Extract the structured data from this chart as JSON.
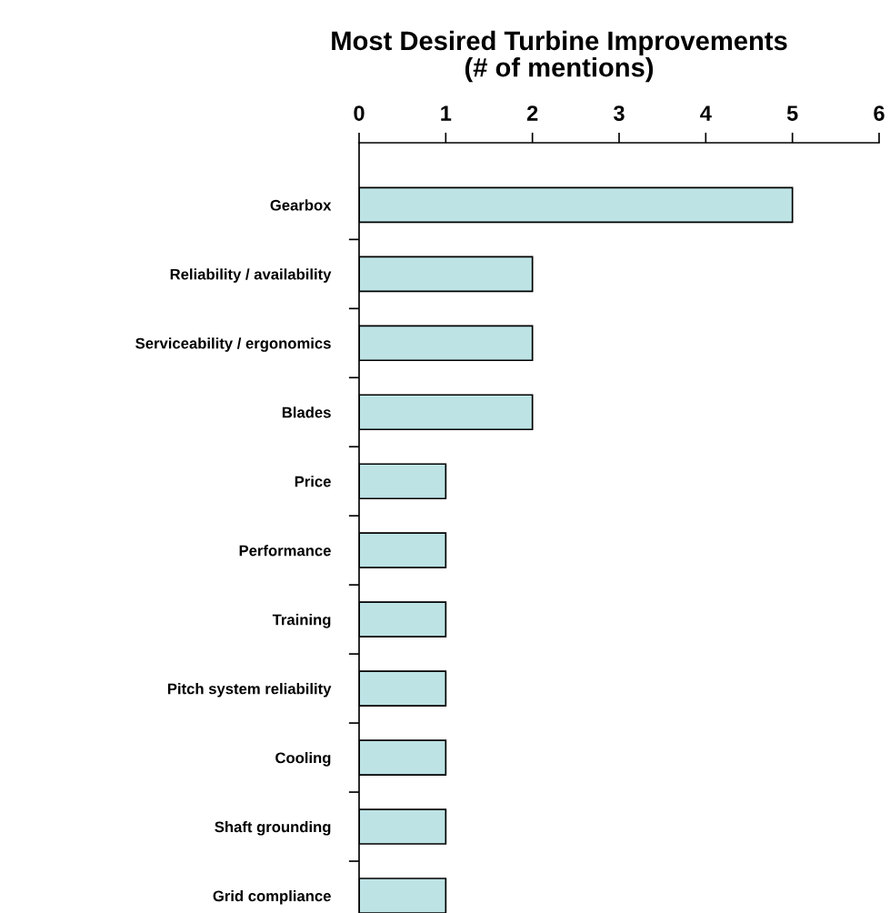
{
  "chart_data": {
    "type": "bar",
    "orientation": "horizontal",
    "title": "Most Desired Turbine Improvements\n(# of mentions)",
    "categories": [
      "Gearbox",
      "Reliability / availability",
      "Serviceability / ergonomics",
      "Blades",
      "Price",
      "Performance",
      "Training",
      "Pitch system reliability",
      "Cooling",
      "Shaft grounding",
      "Grid compliance"
    ],
    "values": [
      5,
      2,
      2,
      2,
      1,
      1,
      1,
      1,
      1,
      1,
      1
    ],
    "color": "#bde3e5",
    "xlim": [
      0,
      6
    ],
    "xticks": [
      0,
      1,
      2,
      3,
      4,
      5,
      6
    ]
  }
}
